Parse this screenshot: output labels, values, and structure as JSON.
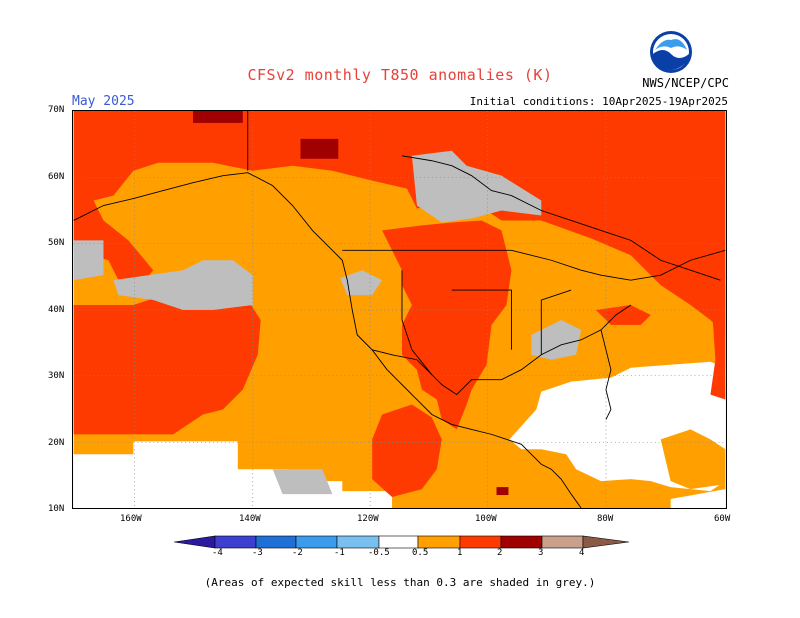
{
  "title": "CFSv2 monthly T850 anomalies (K)",
  "period": "May 2025",
  "initial_conditions": "Initial conditions: 10Apr2025-19Apr2025",
  "agency": "NWS/NCEP/CPC",
  "logo_text": "NOAA",
  "lat_labels": [
    "70N",
    "60N",
    "50N",
    "40N",
    "30N",
    "20N",
    "10N"
  ],
  "lon_labels": [
    "160W",
    "140W",
    "120W",
    "100W",
    "80W",
    "60W"
  ],
  "colorbar": {
    "labels": [
      "-4",
      "-3",
      "-2",
      "-1",
      "-0.5",
      "0.5",
      "1",
      "2",
      "3",
      "4"
    ],
    "colors": [
      "#2a1aa0",
      "#3d3fd0",
      "#1e6fd6",
      "#3b9bec",
      "#79c0f0",
      "#ffffff",
      "#ffa000",
      "#ff3a00",
      "#a00000",
      "#c8a08c",
      "#8a5a46"
    ]
  },
  "legend_colors": {
    "orange_0.5_1": "#ffa000",
    "red_1_2": "#ff3a00",
    "darkred_2_3": "#a00000",
    "grey_low_skill": "#bebebe",
    "white_neutral": "#ffffff"
  },
  "footnote": "(Areas of expected skill less than 0.3 are shaded in grey.)"
}
